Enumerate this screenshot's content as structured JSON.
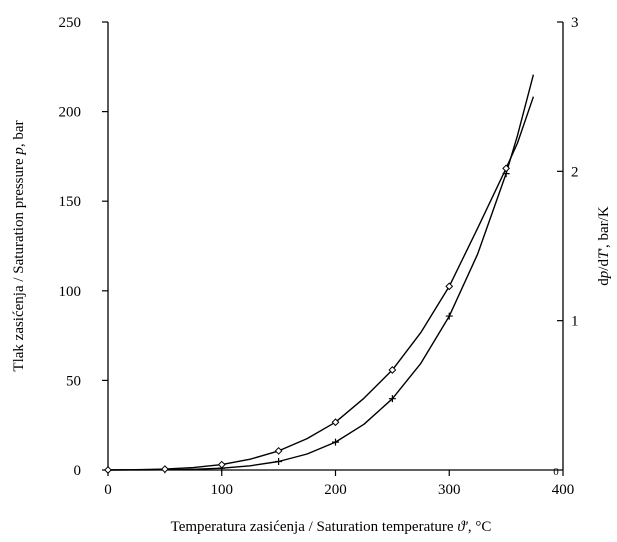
{
  "chart_data": {
    "type": "line",
    "title": "",
    "xlabel": "Temperatura zasićenja / Saturation temperature",
    "xlabel_symbol": "ϑ'",
    "xlabel_unit": ", °C",
    "ylabel": "Tlak zasićenja / Saturation pressure",
    "ylabel_symbol": "p",
    "ylabel_unit": ", bar",
    "y2label_prefix": "d",
    "y2label_symbol1": "p",
    "y2label_mid": "/d",
    "y2label_symbol2": "T",
    "y2label_unit": "', bar/K",
    "xlim": [
      0,
      400
    ],
    "ylim": [
      0,
      250
    ],
    "y2lim": [
      0,
      3
    ],
    "x_ticks": [
      "0",
      "100",
      "200",
      "300",
      "400"
    ],
    "y_ticks": [
      "0",
      "50",
      "100",
      "150",
      "200",
      "250"
    ],
    "y2_ticks": [
      "1",
      "2",
      "3"
    ],
    "grid": false,
    "legend": "none",
    "series": [
      {
        "axis": "left",
        "marker": "plus",
        "x": [
          0,
          25,
          50,
          75,
          100,
          125,
          150,
          175,
          200,
          225,
          250,
          275,
          300,
          325,
          350,
          360,
          374
        ],
        "values": [
          0.006,
          0.032,
          0.124,
          0.386,
          1.014,
          2.32,
          4.76,
          8.92,
          15.55,
          25.5,
          39.8,
          59.5,
          85.9,
          120.6,
          165.4,
          186.7,
          220.6
        ],
        "marker_x": [
          0,
          50,
          100,
          150,
          200,
          250,
          300,
          350
        ],
        "marker_values": [
          0.006,
          0.124,
          1.014,
          4.76,
          15.55,
          39.8,
          85.9,
          165.4
        ]
      },
      {
        "axis": "right",
        "marker": "diamond",
        "x": [
          0,
          25,
          50,
          75,
          100,
          125,
          150,
          175,
          200,
          225,
          250,
          275,
          300,
          325,
          350,
          360,
          374
        ],
        "values": [
          0.0004,
          0.002,
          0.006,
          0.016,
          0.036,
          0.072,
          0.128,
          0.21,
          0.32,
          0.48,
          0.67,
          0.92,
          1.23,
          1.62,
          2.02,
          2.19,
          2.5
        ],
        "marker_x": [
          0,
          50,
          100,
          150,
          200,
          250,
          300,
          350
        ],
        "marker_values": [
          0.0004,
          0.006,
          0.036,
          0.128,
          0.32,
          0.67,
          1.23,
          2.02
        ]
      }
    ]
  }
}
